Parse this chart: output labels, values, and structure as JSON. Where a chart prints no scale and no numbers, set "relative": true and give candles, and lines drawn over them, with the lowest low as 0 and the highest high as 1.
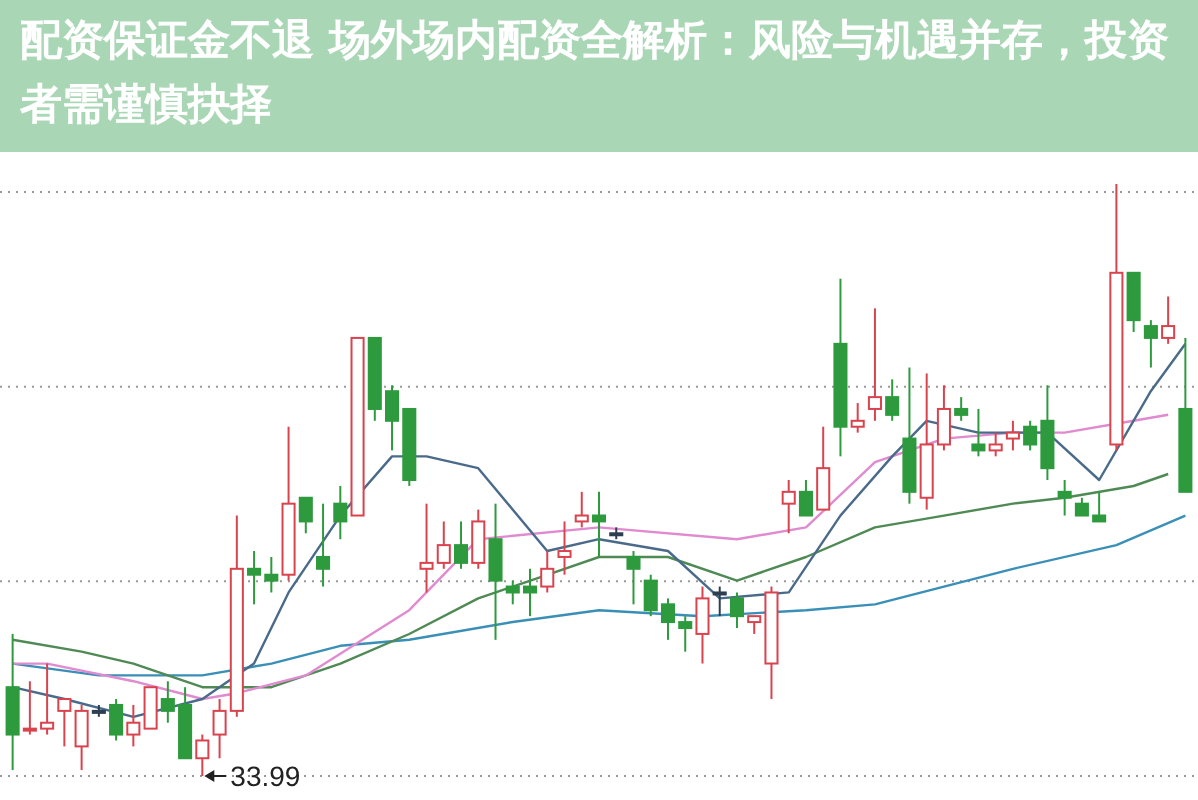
{
  "chart_data": {
    "type": "candlestick",
    "title": "配资保证金不退 场外场内配资全解析：风险与机遇并存，投资者需谨慎抉择",
    "relative": true,
    "grid": "y",
    "categories": [
      null,
      null,
      null,
      null,
      null,
      null,
      null,
      null,
      null,
      null,
      null,
      null,
      null,
      null,
      null,
      null,
      null,
      null,
      null,
      null,
      null,
      null,
      null,
      null,
      null,
      null,
      null,
      null,
      null,
      null,
      null,
      null,
      null,
      null,
      null,
      null,
      null,
      null,
      null,
      null,
      null,
      null,
      null,
      null,
      null,
      null,
      null,
      null,
      null,
      null,
      null,
      null,
      null,
      null,
      null,
      null,
      null,
      null,
      null,
      null,
      null,
      null,
      null,
      null,
      null,
      null,
      null,
      null,
      null
    ],
    "ohlc": [
      [
        0.15,
        0.24,
        0.01,
        0.07
      ],
      [
        0.08,
        0.16,
        0.07,
        0.08
      ],
      [
        0.08,
        0.19,
        0.07,
        0.09
      ],
      [
        0.11,
        0.13,
        0.05,
        0.13
      ],
      [
        0.05,
        0.12,
        0.01,
        0.11
      ],
      [
        0.11,
        0.12,
        0.1,
        0.11
      ],
      [
        0.12,
        0.13,
        0.06,
        0.07
      ],
      [
        0.07,
        0.12,
        0.05,
        0.09
      ],
      [
        0.08,
        0.15,
        0.08,
        0.15
      ],
      [
        0.13,
        0.16,
        0.09,
        0.11
      ],
      [
        0.12,
        0.15,
        0.03,
        0.03
      ],
      [
        0.03,
        0.07,
        0,
        0.06
      ],
      [
        0.07,
        0.13,
        0.03,
        0.11
      ],
      [
        0.11,
        0.44,
        0.1,
        0.35
      ],
      [
        0.35,
        0.38,
        0.29,
        0.34
      ],
      [
        0.34,
        0.37,
        0.31,
        0.33
      ],
      [
        0.34,
        0.59,
        0.33,
        0.46
      ],
      [
        0.47,
        0.47,
        0.41,
        0.43
      ],
      [
        0.37,
        0.46,
        0.32,
        0.35
      ],
      [
        0.46,
        0.49,
        0.4,
        0.43
      ],
      [
        0.44,
        0.74,
        0.44,
        0.74
      ],
      [
        0.74,
        0.74,
        0.6,
        0.62
      ],
      [
        0.65,
        0.66,
        0.55,
        0.6
      ],
      [
        0.62,
        0.62,
        0.49,
        0.5
      ],
      [
        0.35,
        0.46,
        0.31,
        0.36
      ],
      [
        0.36,
        0.43,
        0.35,
        0.39
      ],
      [
        0.39,
        0.43,
        0.35,
        0.36
      ],
      [
        0.36,
        0.45,
        0.35,
        0.43
      ],
      [
        0.4,
        0.46,
        0.23,
        0.33
      ],
      [
        0.32,
        0.33,
        0.29,
        0.31
      ],
      [
        0.32,
        0.35,
        0.27,
        0.31
      ],
      [
        0.32,
        0.38,
        0.31,
        0.35
      ],
      [
        0.37,
        0.43,
        0.34,
        0.38
      ],
      [
        0.43,
        0.48,
        0.42,
        0.44
      ],
      [
        0.44,
        0.48,
        0.37,
        0.43
      ],
      [
        0.41,
        0.42,
        0.4,
        0.41
      ],
      [
        0.37,
        0.38,
        0.29,
        0.35
      ],
      [
        0.33,
        0.34,
        0.27,
        0.28
      ],
      [
        0.29,
        0.3,
        0.23,
        0.26
      ],
      [
        0.26,
        0.27,
        0.21,
        0.25
      ],
      [
        0.24,
        0.32,
        0.19,
        0.3
      ],
      [
        0.31,
        0.32,
        0.27,
        0.31
      ],
      [
        0.3,
        0.31,
        0.25,
        0.27
      ],
      [
        0.26,
        0.27,
        0.24,
        0.27
      ],
      [
        0.19,
        0.32,
        0.13,
        0.31
      ],
      [
        0.46,
        0.5,
        0.41,
        0.48
      ],
      [
        0.48,
        0.5,
        0.44,
        0.44
      ],
      [
        0.45,
        0.59,
        0.45,
        0.52
      ],
      [
        0.73,
        0.84,
        0.54,
        0.59
      ],
      [
        0.59,
        0.63,
        0.58,
        0.6
      ],
      [
        0.62,
        0.79,
        0.6,
        0.64
      ],
      [
        0.64,
        0.67,
        0.6,
        0.61
      ],
      [
        0.57,
        0.69,
        0.46,
        0.48
      ],
      [
        0.47,
        0.68,
        0.45,
        0.56
      ],
      [
        0.56,
        0.66,
        0.55,
        0.62
      ],
      [
        0.62,
        0.64,
        0.6,
        0.61
      ],
      [
        0.56,
        0.62,
        0.54,
        0.55
      ],
      [
        0.55,
        0.58,
        0.54,
        0.56
      ],
      [
        0.57,
        0.6,
        0.55,
        0.58
      ],
      [
        0.59,
        0.6,
        0.55,
        0.56
      ],
      [
        0.6,
        0.66,
        0.5,
        0.52
      ],
      [
        0.48,
        0.5,
        0.44,
        0.47
      ],
      [
        0.46,
        0.47,
        0.44,
        0.44
      ],
      [
        0.44,
        0.48,
        0.43,
        0.43
      ],
      [
        0.56,
        1,
        0.55,
        0.85
      ],
      [
        0.85,
        0.85,
        0.75,
        0.77
      ],
      [
        0.76,
        0.77,
        0.69,
        0.74
      ],
      [
        0.74,
        0.81,
        0.73,
        0.76
      ],
      [
        0.62,
        0.74,
        0.48,
        0.48
      ]
    ],
    "colors": [
      "#2e9a3e",
      "#d9434e",
      "#d9434e",
      "#d9434e",
      "#d9434e",
      "#2d3e50",
      "#2e9a3e",
      "#d9434e",
      "#d9434e",
      "#2e9a3e",
      "#2e9a3e",
      "#d9434e",
      "#d9434e",
      "#d9434e",
      "#2e9a3e",
      "#2e9a3e",
      "#d9434e",
      "#2e9a3e",
      "#2e9a3e",
      "#2e9a3e",
      "#d9434e",
      "#2e9a3e",
      "#2e9a3e",
      "#2e9a3e",
      "#d9434e",
      "#d9434e",
      "#2e9a3e",
      "#d9434e",
      "#2e9a3e",
      "#2e9a3e",
      "#2e9a3e",
      "#d9434e",
      "#d9434e",
      "#d9434e",
      "#2e9a3e",
      "#2d3e50",
      "#2e9a3e",
      "#2e9a3e",
      "#2e9a3e",
      "#2e9a3e",
      "#d9434e",
      "#2d3e50",
      "#2e9a3e",
      "#d9434e",
      "#d9434e",
      "#d9434e",
      "#2e9a3e",
      "#d9434e",
      "#2e9a3e",
      "#d9434e",
      "#d9434e",
      "#2e9a3e",
      "#2e9a3e",
      "#d9434e",
      "#d9434e",
      "#2e9a3e",
      "#2e9a3e",
      "#d9434e",
      "#d9434e",
      "#2e9a3e",
      "#2e9a3e",
      "#2e9a3e",
      "#2e9a3e",
      "#2e9a3e",
      "#d9434e",
      "#2e9a3e",
      "#2e9a3e",
      "#d9434e",
      "#2e9a3e"
    ],
    "series": [
      {
        "type": "line",
        "color": "#3a8fb7",
        "values": [
          0.19,
          null,
          null,
          null,
          null,
          0.17,
          null,
          null,
          null,
          null,
          null,
          0.17,
          null,
          null,
          null,
          0.19,
          null,
          null,
          null,
          0.22,
          null,
          null,
          null,
          0.23,
          null,
          null,
          null,
          null,
          null,
          0.26,
          null,
          null,
          null,
          null,
          0.28,
          null,
          null,
          null,
          null,
          null,
          0.27,
          null,
          null,
          null,
          null,
          null,
          0.28,
          null,
          null,
          null,
          0.29,
          null,
          null,
          null,
          0.32,
          null,
          null,
          null,
          0.35,
          null,
          null,
          null,
          null,
          null,
          0.39,
          null,
          null,
          null,
          0.44
        ]
      },
      {
        "type": "line",
        "color": "#4f8a55",
        "values": [
          0.23,
          null,
          null,
          null,
          0.21,
          null,
          null,
          0.19,
          null,
          null,
          null,
          0.15,
          null,
          null,
          null,
          0.15,
          null,
          null,
          null,
          0.19,
          null,
          null,
          null,
          0.24,
          null,
          null,
          null,
          0.3,
          null,
          null,
          null,
          0.34,
          null,
          null,
          0.37,
          null,
          null,
          null,
          0.37,
          null,
          null,
          null,
          0.33,
          null,
          null,
          null,
          0.37,
          null,
          null,
          null,
          0.42,
          null,
          null,
          null,
          0.44,
          null,
          null,
          null,
          0.46,
          null,
          null,
          0.47,
          null,
          null,
          null,
          0.49,
          null,
          0.51,
          null
        ]
      },
      {
        "type": "line",
        "color": "#e08ad0",
        "values": [
          0.19,
          null,
          0.19,
          null,
          null,
          null,
          null,
          0.16,
          null,
          null,
          null,
          0.13,
          null,
          0.14,
          null,
          null,
          null,
          0.17,
          null,
          null,
          null,
          null,
          null,
          0.28,
          null,
          null,
          null,
          0.4,
          null,
          null,
          null,
          null,
          null,
          null,
          0.42,
          null,
          null,
          null,
          null,
          null,
          null,
          null,
          0.4,
          null,
          null,
          null,
          0.42,
          null,
          null,
          null,
          0.53,
          null,
          null,
          null,
          0.57,
          null,
          null,
          null,
          0.58,
          null,
          null,
          0.58,
          null,
          null,
          null,
          0.6,
          null,
          0.61,
          null
        ]
      },
      {
        "type": "line",
        "color": "#4a6a8a",
        "values": [
          0.15,
          null,
          null,
          0.13,
          null,
          null,
          null,
          0.1,
          null,
          null,
          null,
          0.13,
          null,
          null,
          0.19,
          null,
          0.31,
          null,
          null,
          0.44,
          null,
          null,
          0.54,
          null,
          0.54,
          null,
          null,
          0.52,
          null,
          null,
          null,
          0.38,
          null,
          null,
          0.4,
          null,
          null,
          null,
          0.38,
          null,
          null,
          0.3,
          null,
          null,
          null,
          0.31,
          null,
          null,
          0.44,
          null,
          null,
          0.54,
          null,
          0.6,
          null,
          null,
          0.58,
          null,
          null,
          null,
          0.58,
          null,
          null,
          0.5,
          null,
          null,
          0.65,
          null,
          0.73
        ]
      }
    ],
    "annotations": [
      "33.99"
    ]
  }
}
